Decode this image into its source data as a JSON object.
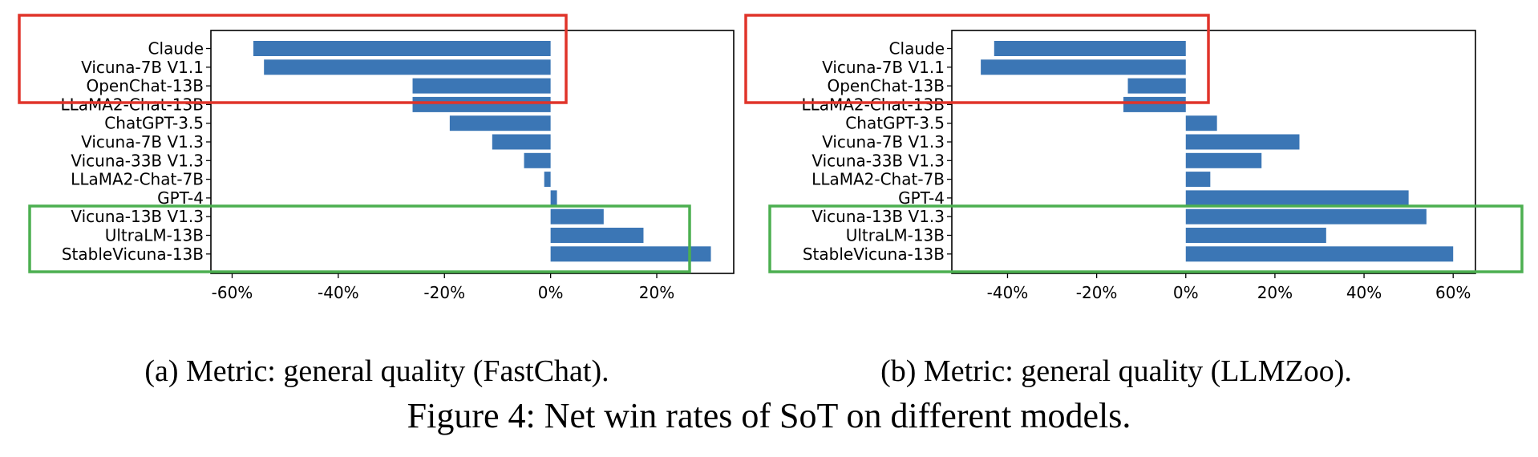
{
  "figure_caption": "Figure 4: Net win rates of SoT on different models.",
  "colors": {
    "bar": "#3b76b5",
    "red_box": "#e0342a",
    "green_box": "#4caf50",
    "axis": "#000000"
  },
  "chart_data": [
    {
      "type": "bar",
      "orientation": "horizontal",
      "caption": "(a) Metric: general quality (FastChat).",
      "categories": [
        "Claude",
        "Vicuna-7B V1.1",
        "OpenChat-13B",
        "LLaMA2-Chat-13B",
        "ChatGPT-3.5",
        "Vicuna-7B V1.3",
        "Vicuna-33B V1.3",
        "LLaMA2-Chat-7B",
        "GPT-4",
        "Vicuna-13B V1.3",
        "UltraLM-13B",
        "StableVicuna-13B"
      ],
      "values": [
        -56,
        -54,
        -26,
        -26,
        -19,
        -11,
        -5,
        -1.2,
        1.2,
        10,
        17.5,
        30.2
      ],
      "xlim": [
        -64,
        34.5
      ],
      "xticks": [
        -60,
        -40,
        -20,
        0,
        20
      ],
      "xtick_labels": [
        "-60%",
        "-40%",
        "-20%",
        "0%",
        "20%"
      ],
      "highlight_red": [
        "Claude",
        "Vicuna-7B V1.1",
        "OpenChat-13B",
        "LLaMA2-Chat-13B"
      ],
      "highlight_green": [
        "Vicuna-13B V1.3",
        "UltraLM-13B",
        "StableVicuna-13B"
      ]
    },
    {
      "type": "bar",
      "orientation": "horizontal",
      "caption": "(b) Metric: general quality (LLMZoo).",
      "categories": [
        "Claude",
        "Vicuna-7B V1.1",
        "OpenChat-13B",
        "LLaMA2-Chat-13B",
        "ChatGPT-3.5",
        "Vicuna-7B V1.3",
        "Vicuna-33B V1.3",
        "LLaMA2-Chat-7B",
        "GPT-4",
        "Vicuna-13B V1.3",
        "UltraLM-13B",
        "StableVicuna-13B"
      ],
      "values": [
        -43,
        -46,
        -13,
        -14,
        7,
        25.5,
        17,
        5.5,
        50,
        54,
        31.5,
        60
      ],
      "xlim": [
        -52.5,
        65
      ],
      "xticks": [
        -40,
        -20,
        0,
        20,
        40,
        60
      ],
      "xtick_labels": [
        "-40%",
        "-20%",
        "0%",
        "20%",
        "40%",
        "60%"
      ],
      "highlight_red": [
        "Claude",
        "Vicuna-7B V1.1",
        "OpenChat-13B",
        "LLaMA2-Chat-13B"
      ],
      "highlight_green": [
        "Vicuna-13B V1.3",
        "UltraLM-13B",
        "StableVicuna-13B"
      ]
    }
  ]
}
